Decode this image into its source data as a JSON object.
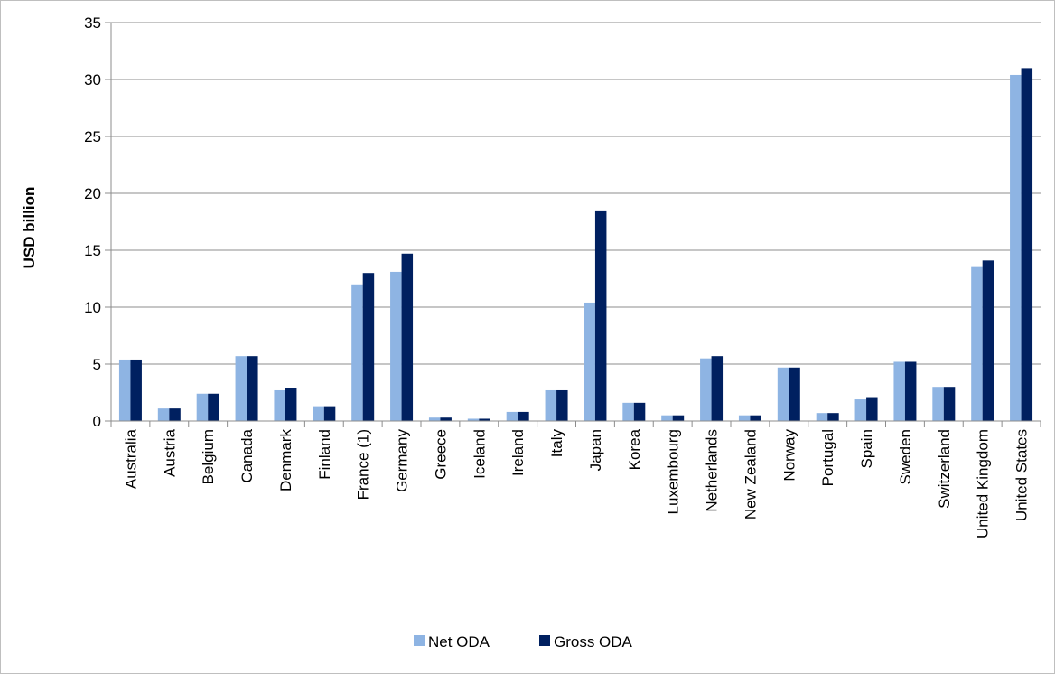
{
  "chart_data": {
    "type": "bar",
    "title": "",
    "xlabel": "",
    "ylabel": "USD billion",
    "ylim": [
      0,
      35
    ],
    "yticks": [
      0,
      5,
      10,
      15,
      20,
      25,
      30,
      35
    ],
    "grid": true,
    "legend_position": "bottom",
    "categories": [
      "Australia",
      "Austria",
      "Belgium",
      "Canada",
      "Denmark",
      "Finland",
      "France (1)",
      "Germany",
      "Greece",
      "Iceland",
      "Ireland",
      "Italy",
      "Japan",
      "Korea",
      "Luxembourg",
      "Netherlands",
      "New Zealand",
      "Norway",
      "Portugal",
      "Spain",
      "Sweden",
      "Switzerland",
      "United Kingdom",
      "United States"
    ],
    "series": [
      {
        "name": "Net ODA",
        "color": "#8eb4e3",
        "values": [
          5.4,
          1.1,
          2.4,
          5.7,
          2.7,
          1.3,
          12.0,
          13.1,
          0.3,
          0.2,
          0.8,
          2.7,
          10.4,
          1.6,
          0.5,
          5.5,
          0.5,
          4.7,
          0.7,
          1.9,
          5.2,
          3.0,
          13.6,
          30.4
        ]
      },
      {
        "name": "Gross ODA",
        "color": "#002060",
        "values": [
          5.4,
          1.1,
          2.4,
          5.7,
          2.9,
          1.3,
          13.0,
          14.7,
          0.3,
          0.2,
          0.8,
          2.7,
          18.5,
          1.6,
          0.5,
          5.7,
          0.5,
          4.7,
          0.7,
          2.1,
          5.2,
          3.0,
          14.1,
          31.0
        ]
      }
    ]
  }
}
